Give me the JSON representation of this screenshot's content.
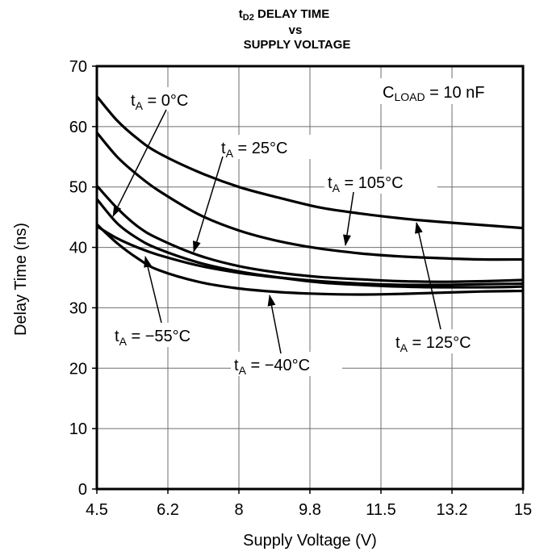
{
  "chart_data": {
    "type": "line",
    "title_parts": {
      "t": "t",
      "sub": "D2",
      "rest": " DELAY TIME"
    },
    "title_line2": "vs",
    "title_line3": "SUPPLY VOLTAGE",
    "xlabel": "Supply Voltage (V)",
    "ylabel": "Delay Time (ns)",
    "x_ticks": [
      "4.5",
      "6.2",
      "8",
      "9.8",
      "11.5",
      "13.2",
      "15"
    ],
    "y_ticks": [
      "0",
      "10",
      "20",
      "30",
      "40",
      "50",
      "60",
      "70"
    ],
    "xlim": [
      4.5,
      15
    ],
    "ylim": [
      0,
      70
    ],
    "grid": true,
    "condition": {
      "t": "C",
      "sub": "LOAD",
      "rest": " = 10 nF"
    },
    "series": [
      {
        "name": "tA = −55°C",
        "x": [
          4.5,
          5.0,
          5.5,
          6.0,
          7.0,
          8.0,
          9.0,
          10.0,
          11.0,
          12.0,
          13.0,
          14.0,
          15.0
        ],
        "y": [
          43.5,
          41.5,
          40.0,
          38.8,
          37.0,
          35.8,
          35.0,
          34.4,
          34.0,
          33.8,
          33.8,
          33.9,
          34.0
        ]
      },
      {
        "name": "tA = −40°C",
        "x": [
          4.5,
          5.0,
          5.5,
          6.0,
          7.0,
          8.0,
          9.0,
          10.0,
          11.0,
          12.0,
          13.0,
          14.0,
          15.0
        ],
        "y": [
          43.8,
          40.7,
          38.2,
          36.3,
          34.3,
          33.2,
          32.6,
          32.3,
          32.2,
          32.3,
          32.5,
          32.7,
          32.8
        ]
      },
      {
        "name": "tA = 0°C",
        "x": [
          4.5,
          5.0,
          5.5,
          6.0,
          7.0,
          8.0,
          9.0,
          10.0,
          11.0,
          12.0,
          13.0,
          14.0,
          15.0
        ],
        "y": [
          48.0,
          44.0,
          41.5,
          39.8,
          37.5,
          36.0,
          35.0,
          34.2,
          33.8,
          33.5,
          33.4,
          33.4,
          33.5
        ]
      },
      {
        "name": "tA = 25°C",
        "x": [
          4.5,
          5.0,
          5.5,
          6.0,
          7.0,
          8.0,
          9.0,
          10.0,
          11.0,
          12.0,
          13.0,
          14.0,
          15.0
        ],
        "y": [
          50.2,
          46.5,
          43.5,
          41.5,
          38.7,
          36.9,
          35.8,
          35.1,
          34.7,
          34.4,
          34.3,
          34.4,
          34.6
        ]
      },
      {
        "name": "tA = 105°C",
        "x": [
          4.5,
          5.0,
          5.5,
          6.0,
          7.0,
          8.0,
          9.0,
          10.0,
          11.0,
          12.0,
          13.0,
          14.0,
          15.0
        ],
        "y": [
          59.0,
          55.0,
          52.0,
          49.5,
          45.5,
          42.8,
          41.0,
          39.8,
          39.0,
          38.5,
          38.2,
          38.0,
          38.0
        ]
      },
      {
        "name": "tA = 125°C",
        "x": [
          4.5,
          5.0,
          5.5,
          6.0,
          7.0,
          8.0,
          9.0,
          10.0,
          11.0,
          12.0,
          13.0,
          14.0,
          15.0
        ],
        "y": [
          65.0,
          61.0,
          58.0,
          55.7,
          52.5,
          50.0,
          48.2,
          46.6,
          45.6,
          44.8,
          44.2,
          43.7,
          43.2
        ]
      }
    ],
    "labels": [
      {
        "t": "t",
        "sub": "A",
        "rest": " = 0°C"
      },
      {
        "t": "t",
        "sub": "A",
        "rest": " = 25°C"
      },
      {
        "t": "t",
        "sub": "A",
        "rest": " = 105°C"
      },
      {
        "t": "t",
        "sub": "A",
        "rest": " = −55°C"
      },
      {
        "t": "t",
        "sub": "A",
        "rest": " = −40°C"
      },
      {
        "t": "t",
        "sub": "A",
        "rest": " = 125°C"
      }
    ],
    "line_color": "#000000",
    "grid_color": "#6e6e6e"
  }
}
